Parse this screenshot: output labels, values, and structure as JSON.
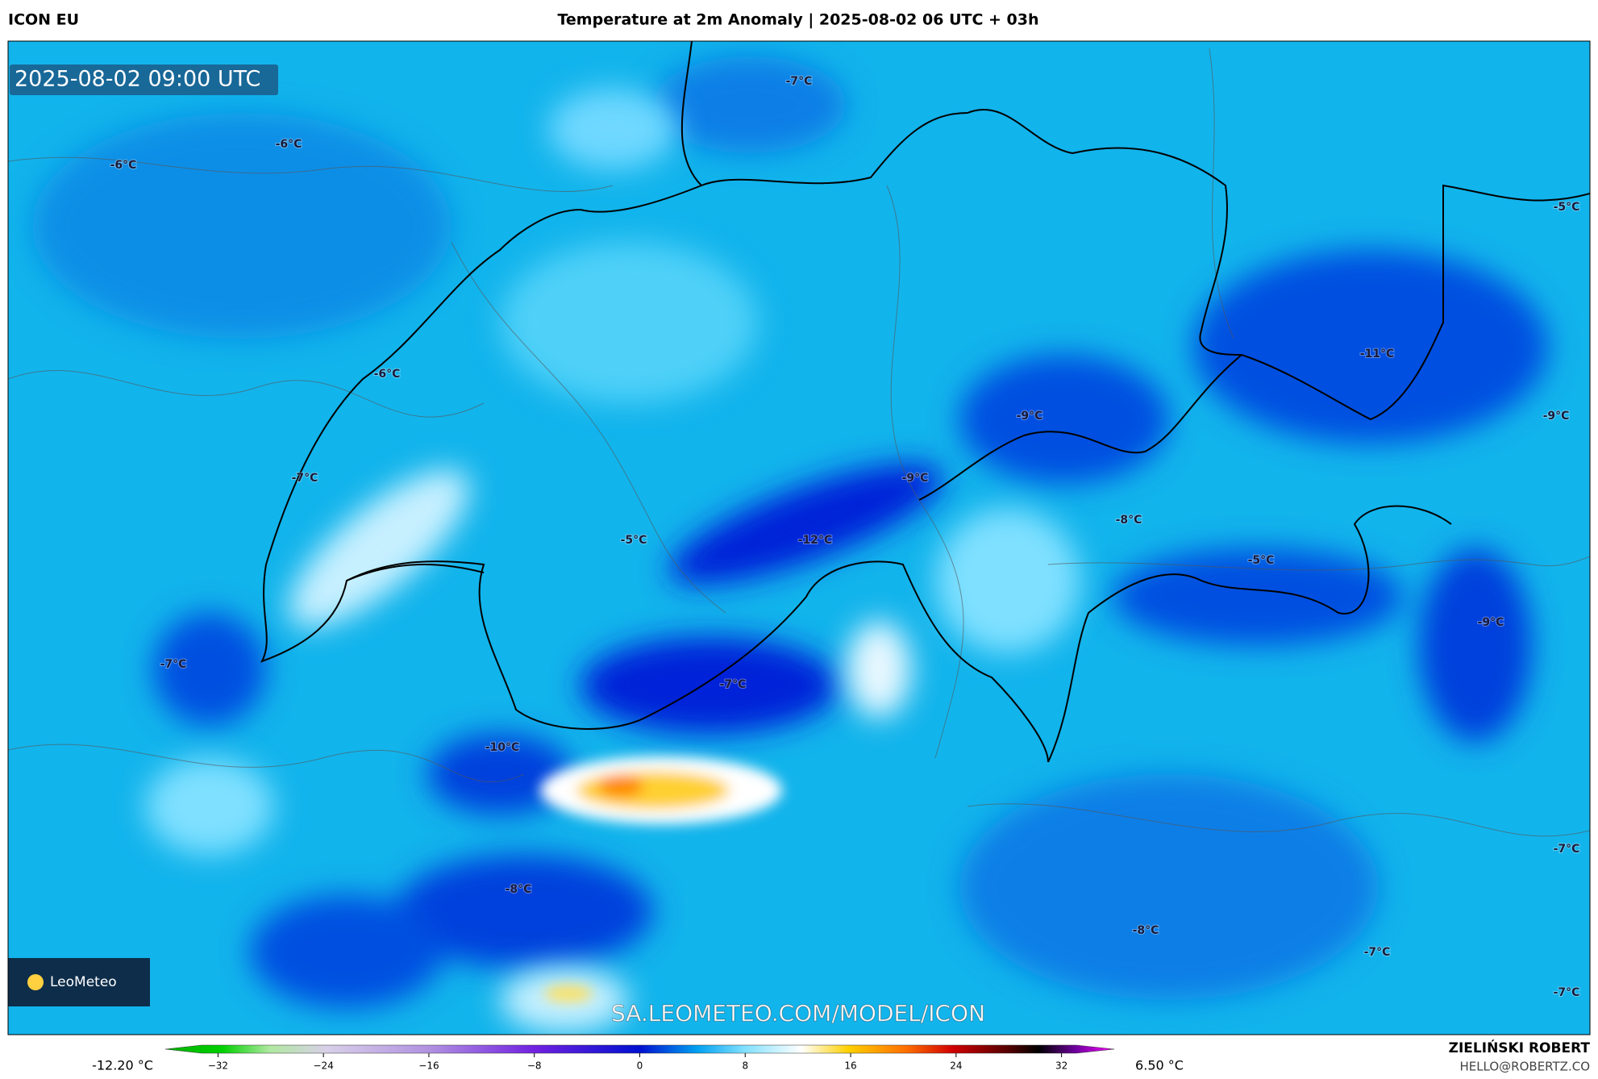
{
  "header": {
    "model": "ICON EU",
    "title": "Temperature at 2m Anomaly | 2025-08-02 06 UTC + 03h"
  },
  "map": {
    "timestamp": "2025-08-02 09:00 UTC",
    "logo": "LeoMeteo",
    "watermark": "SA.LEOMETEO.COM/MODEL/ICON",
    "labels": [
      "-7°C",
      "-6°C",
      "-6°C",
      "-5°C",
      "-6°C",
      "-11°C",
      "-9°C",
      "-9°C",
      "-7°C",
      "-9°C",
      "-8°C",
      "-5°C",
      "-12°C",
      "-5°C",
      "-9°C",
      "-7°C",
      "-7°C",
      "-10°C",
      "-8°C",
      "-8°C",
      "-7°C",
      "-7°C",
      "-7°C"
    ]
  },
  "colorbar": {
    "min_label": "-12.20 °C",
    "max_label": "6.50 °C",
    "range": [
      -36,
      36
    ],
    "ticks": [
      {
        "value": -32,
        "label": "−32"
      },
      {
        "value": -24,
        "label": "−24"
      },
      {
        "value": -16,
        "label": "−16"
      },
      {
        "value": -8,
        "label": "−8"
      },
      0,
      8,
      16,
      24,
      32
    ]
  },
  "footer": {
    "author": "ZIELIŃSKI ROBERT",
    "contact": "HELLO@ROBERTZ.CO"
  }
}
